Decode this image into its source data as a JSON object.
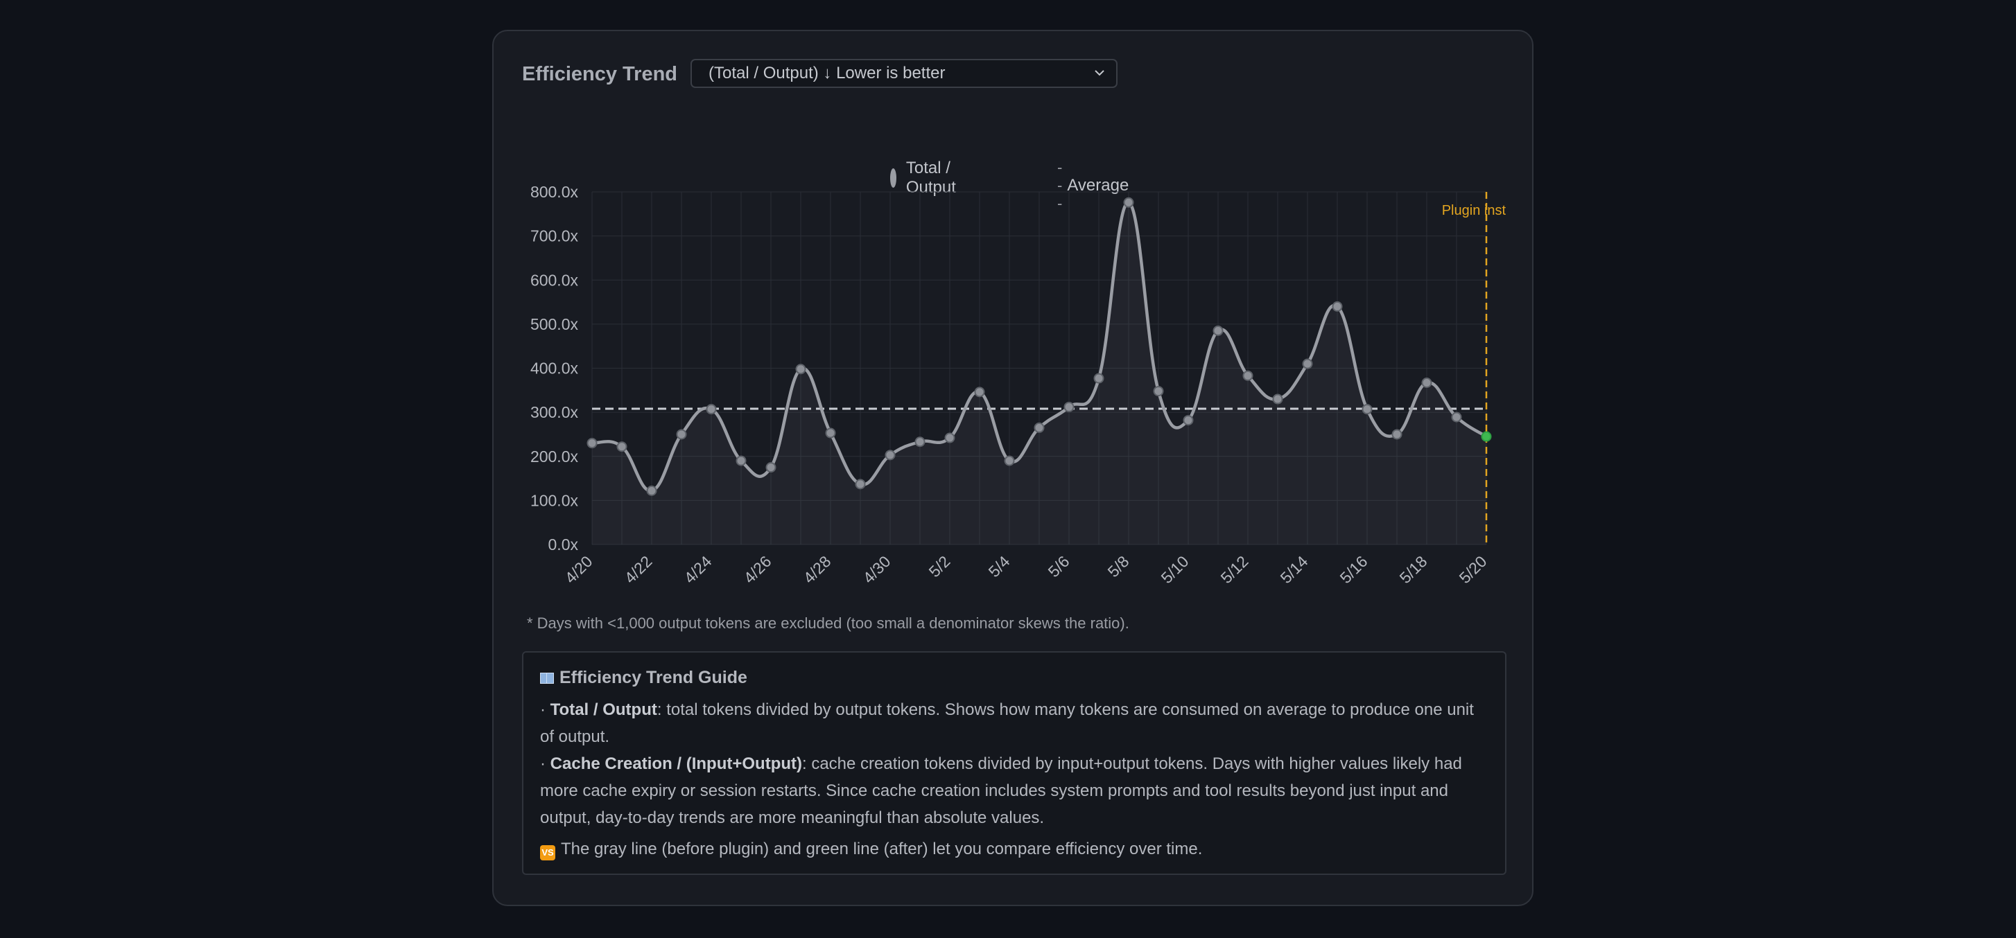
{
  "header": {
    "title": "Efficiency Trend",
    "selected_mode": "(Total / Output) ↓ Lower is better"
  },
  "legend": {
    "series_label": "Total / Output",
    "average_label": "Average",
    "average_glyph": "---"
  },
  "annotation": {
    "label": "Plugin inst"
  },
  "footnote": "* Days with <1,000 output tokens are excluded (too small a denominator skews the ratio).",
  "guide": {
    "title": "Efficiency Trend Guide",
    "item1_term": "Total / Output",
    "item1_text": ": total tokens divided by output tokens. Shows how many tokens are consumed on average to produce one unit of output.",
    "item2_term": "Cache Creation / (Input+Output)",
    "item2_text": ": cache creation tokens divided by input+output tokens. Days with higher values likely had more cache expiry or session restarts. Since cache creation includes system prompts and tool results beyond just input and output, day-to-day trends are more meaningful than absolute values.",
    "bullet": "·",
    "compare_text": "The gray line (before plugin) and green line (after) let you compare efficiency over time.",
    "compare_icon": "VS"
  },
  "colors": {
    "line": "#9a9da4",
    "after_point": "#3fb950",
    "plugin_marker": "#e3a520",
    "average": "#c9ccd2",
    "grid": "#2a2e36"
  },
  "chart_data": {
    "type": "line",
    "ylim": [
      0,
      800
    ],
    "yticks": [
      "0.0x",
      "100.0x",
      "200.0x",
      "300.0x",
      "400.0x",
      "500.0x",
      "600.0x",
      "700.0x",
      "800.0x"
    ],
    "xtick_labels": [
      "4/20",
      "4/22",
      "4/24",
      "4/26",
      "4/28",
      "4/30",
      "5/2",
      "5/4",
      "5/6",
      "5/8",
      "5/10",
      "5/12",
      "5/14",
      "5/16",
      "5/18",
      "5/20"
    ],
    "x": [
      "4/20",
      "4/21",
      "4/22",
      "4/23",
      "4/24",
      "4/25",
      "4/26",
      "4/27",
      "4/28",
      "4/29",
      "4/30",
      "5/1",
      "5/2",
      "5/3",
      "5/4",
      "5/5",
      "5/6",
      "5/7",
      "5/8",
      "5/9",
      "5/10",
      "5/11",
      "5/12",
      "5/13",
      "5/14",
      "5/15",
      "5/16",
      "5/17",
      "5/18",
      "5/19",
      "5/20"
    ],
    "series": [
      {
        "name": "Total / Output",
        "values": [
          230,
          222,
          122,
          250,
          307,
          190,
          175,
          398,
          253,
          137,
          203,
          233,
          242,
          346,
          190,
          265,
          312,
          377,
          776,
          348,
          282,
          485,
          383,
          330,
          410,
          540,
          307,
          250,
          367,
          289,
          245
        ]
      }
    ],
    "average": 308,
    "plugin_install_x": "5/20",
    "grid": true,
    "legend_position": "top-center"
  }
}
